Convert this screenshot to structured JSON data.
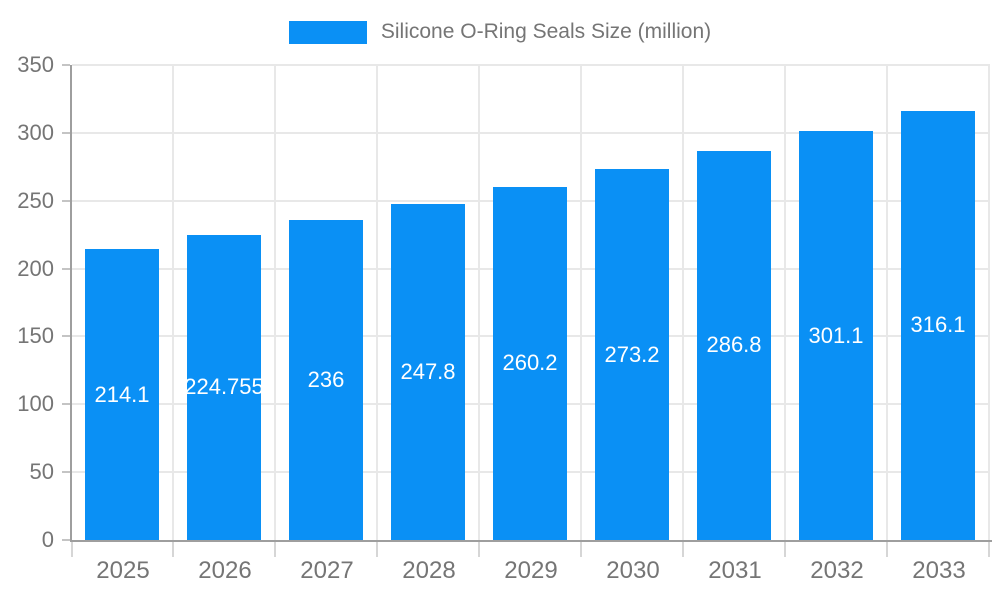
{
  "legend": {
    "label": "Silicone O-Ring Seals Size (million)"
  },
  "colors": {
    "bar": "#0a90f5",
    "grid": "#e8e8e8",
    "axis": "#9e9e9e",
    "tick_y": "#c4c4c4",
    "tick_x": "#d6d6d6",
    "text": "#757575",
    "bar_label": "#ffffff",
    "background": "#ffffff"
  },
  "chart_data": {
    "type": "bar",
    "title": "Silicone O-Ring Seals Size (million)",
    "series_name": "Silicone O-Ring Seals Size (million)",
    "categories": [
      "2025",
      "2026",
      "2027",
      "2028",
      "2029",
      "2030",
      "2031",
      "2032",
      "2033"
    ],
    "values": [
      214.1,
      224.755,
      236,
      247.8,
      260.2,
      273.2,
      286.8,
      301.1,
      316.1
    ],
    "value_labels": [
      "214.1",
      "224.755",
      "236",
      "247.8",
      "260.2",
      "273.2",
      "286.8",
      "301.1",
      "316.1"
    ],
    "xlabel": "",
    "ylabel": "",
    "ylim": [
      0,
      350
    ],
    "ytick_step": 50,
    "ytick_labels": [
      "0",
      "50",
      "100",
      "150",
      "200",
      "250",
      "300",
      "350"
    ],
    "grid": true,
    "legend_position": "top-center",
    "value_label_position": "inside-center"
  }
}
